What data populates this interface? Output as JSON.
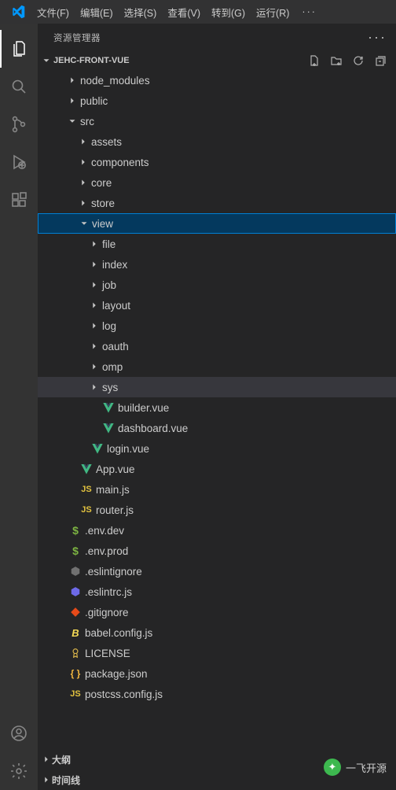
{
  "menubar": {
    "items": [
      "文件(F)",
      "编辑(E)",
      "选择(S)",
      "查看(V)",
      "转到(G)",
      "运行(R)"
    ],
    "more": "···"
  },
  "sidebar": {
    "title": "资源管理器",
    "project": "JEHC-FRONT-VUE"
  },
  "outline": {
    "label": "大纲"
  },
  "timeline": {
    "label": "时间线"
  },
  "tree": [
    {
      "name": "node_modules",
      "type": "folder",
      "expanded": false,
      "depth": 0
    },
    {
      "name": "public",
      "type": "folder",
      "expanded": false,
      "depth": 0
    },
    {
      "name": "src",
      "type": "folder",
      "expanded": true,
      "depth": 0
    },
    {
      "name": "assets",
      "type": "folder",
      "expanded": false,
      "depth": 1
    },
    {
      "name": "components",
      "type": "folder",
      "expanded": false,
      "depth": 1
    },
    {
      "name": "core",
      "type": "folder",
      "expanded": false,
      "depth": 1
    },
    {
      "name": "store",
      "type": "folder",
      "expanded": false,
      "depth": 1
    },
    {
      "name": "view",
      "type": "folder",
      "expanded": true,
      "depth": 1,
      "selected": true
    },
    {
      "name": "file",
      "type": "folder",
      "expanded": false,
      "depth": 2
    },
    {
      "name": "index",
      "type": "folder",
      "expanded": false,
      "depth": 2
    },
    {
      "name": "job",
      "type": "folder",
      "expanded": false,
      "depth": 2
    },
    {
      "name": "layout",
      "type": "folder",
      "expanded": false,
      "depth": 2
    },
    {
      "name": "log",
      "type": "folder",
      "expanded": false,
      "depth": 2
    },
    {
      "name": "oauth",
      "type": "folder",
      "expanded": false,
      "depth": 2
    },
    {
      "name": "omp",
      "type": "folder",
      "expanded": false,
      "depth": 2
    },
    {
      "name": "sys",
      "type": "folder",
      "expanded": false,
      "depth": 2,
      "hovered": true
    },
    {
      "name": "builder.vue",
      "type": "file",
      "icon": "vue",
      "depth": 2
    },
    {
      "name": "dashboard.vue",
      "type": "file",
      "icon": "vue",
      "depth": 2
    },
    {
      "name": "login.vue",
      "type": "file",
      "icon": "vue",
      "depth": 1
    },
    {
      "name": "App.vue",
      "type": "file",
      "icon": "vue",
      "depth": 0
    },
    {
      "name": "main.js",
      "type": "file",
      "icon": "js",
      "depth": 0
    },
    {
      "name": "router.js",
      "type": "file",
      "icon": "js",
      "depth": 0
    },
    {
      "name": ".env.dev",
      "type": "file",
      "icon": "dollar",
      "depth": -1
    },
    {
      "name": ".env.prod",
      "type": "file",
      "icon": "dollar",
      "depth": -1
    },
    {
      "name": ".eslintignore",
      "type": "file",
      "icon": "eslint-ignore",
      "depth": -1
    },
    {
      "name": ".eslintrc.js",
      "type": "file",
      "icon": "eslint",
      "depth": -1
    },
    {
      "name": ".gitignore",
      "type": "file",
      "icon": "git",
      "depth": -1
    },
    {
      "name": "babel.config.js",
      "type": "file",
      "icon": "babel",
      "depth": -1
    },
    {
      "name": "LICENSE",
      "type": "file",
      "icon": "license",
      "depth": -1
    },
    {
      "name": "package.json",
      "type": "file",
      "icon": "json",
      "depth": -1
    },
    {
      "name": "postcss.config.js",
      "type": "file",
      "icon": "js",
      "depth": -1
    }
  ],
  "colors": {
    "vue": "#41b883",
    "js": "#e2c23f",
    "dollar": "#7cb342",
    "eslint": "#6e6ae8",
    "eslint_ignore": "#717171",
    "git": "#e64a19",
    "babel": "#f5da55",
    "license": "#d9b44a",
    "json": "#f3b73f"
  },
  "watermark": {
    "text": "一飞开源"
  }
}
